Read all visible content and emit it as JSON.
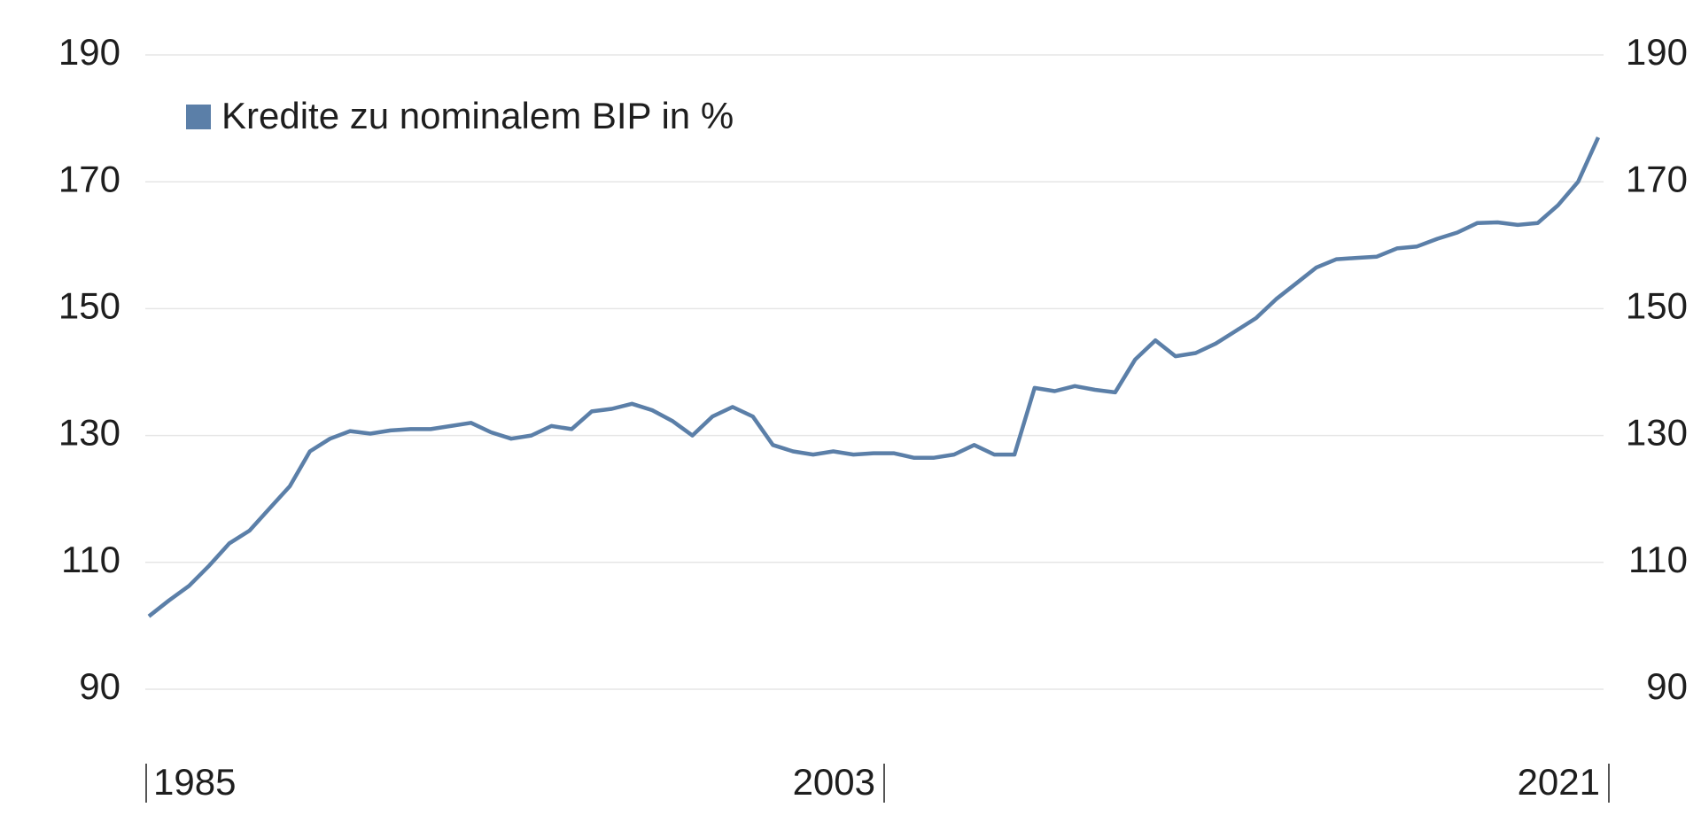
{
  "chart_data": {
    "type": "line",
    "series": [
      {
        "name": "Kredite zu nominalem BIP in %",
        "color": "#5b7fa8",
        "values": [
          101.5,
          104,
          106.3,
          109.5,
          113,
          115,
          118.5,
          122,
          127.5,
          129.5,
          130.7,
          130.3,
          130.8,
          131,
          131,
          131.5,
          132,
          130.5,
          129.5,
          130,
          131.5,
          131,
          133.8,
          134.2,
          135,
          134,
          132.3,
          130,
          133,
          134.5,
          133,
          128.5,
          127.5,
          127,
          127.5,
          127,
          127.2,
          127.2,
          126.5,
          126.5,
          127,
          128.5,
          127,
          127,
          137.5,
          137,
          137.8,
          137.2,
          136.8,
          142,
          145,
          142.5,
          143,
          144.5,
          146.5,
          148.5,
          151.5,
          154,
          156.5,
          157.8,
          158,
          158.2,
          159.5,
          159.8,
          161,
          162,
          163.5,
          163.6,
          163.2,
          163.5,
          166.3,
          170,
          177
        ]
      }
    ],
    "x": [
      1985,
      1985.5,
      1986,
      1986.5,
      1987,
      1987.5,
      1988,
      1988.5,
      1989,
      1989.5,
      1990,
      1990.5,
      1991,
      1991.5,
      1992,
      1992.5,
      1993,
      1993.5,
      1994,
      1994.5,
      1995,
      1995.5,
      1996,
      1996.5,
      1997,
      1997.5,
      1998,
      1998.5,
      1999,
      1999.5,
      2000,
      2000.5,
      2001,
      2001.5,
      2002,
      2002.5,
      2003,
      2003.5,
      2004,
      2004.5,
      2005,
      2005.5,
      2006,
      2006.5,
      2007,
      2007.5,
      2008,
      2008.5,
      2009,
      2009.5,
      2010,
      2010.5,
      2011,
      2011.5,
      2012,
      2012.5,
      2013,
      2013.5,
      2014,
      2014.5,
      2015,
      2015.5,
      2016,
      2016.5,
      2017,
      2017.5,
      2018,
      2018.5,
      2019,
      2019.5,
      2020,
      2020.5,
      2021
    ],
    "xlim": [
      1985,
      2021
    ],
    "xticks": [
      1985,
      2003,
      2021
    ],
    "ylim": [
      90,
      190
    ],
    "yticks": [
      90,
      110,
      130,
      150,
      170,
      190
    ],
    "grid": true,
    "legend": "upper left"
  }
}
